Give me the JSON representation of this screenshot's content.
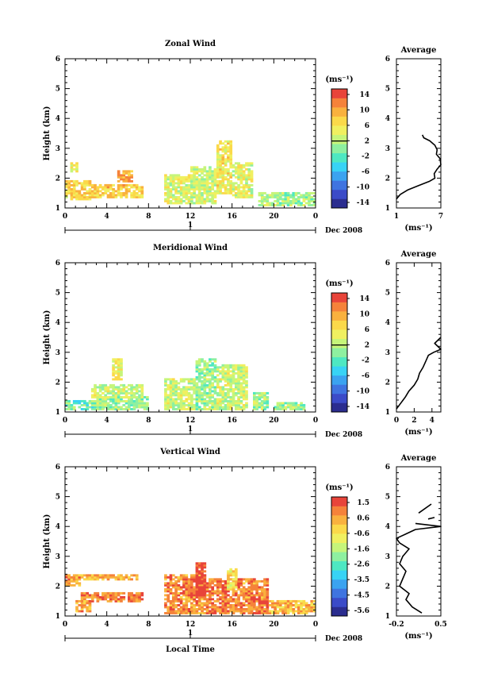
{
  "figure": {
    "colorbar_unit": "(ms⁻¹)",
    "colorbar_colors": [
      "#2b2d8f",
      "#3b4bc8",
      "#3f74e0",
      "#3ba3f0",
      "#38d3f5",
      "#4ee8c2",
      "#8ef0a0",
      "#c6f57a",
      "#f0f060",
      "#fbd94a",
      "#f9b13e",
      "#f5823a",
      "#e8443a"
    ]
  },
  "chart_data": [
    {
      "type": "heatmap",
      "title": "Zonal Wind",
      "ylabel": "Height (km)",
      "ylim": [
        1,
        6
      ],
      "yticks": [
        "1",
        "2",
        "3",
        "4",
        "5",
        "6"
      ],
      "xlim": [
        0,
        24
      ],
      "xticks": [
        "0",
        "4",
        "8",
        "12",
        "16",
        "20",
        "0"
      ],
      "date_axis_tick": "1",
      "date_axis_label": "Dec 2008",
      "xlabel": "",
      "colorbar_ticks": [
        "14",
        "10",
        "6",
        "2",
        "-2",
        "-6",
        "-10",
        "-14"
      ],
      "colorbar_range": [
        -16,
        16
      ],
      "colorbar_zero": 2,
      "approx_data_regions": [
        {
          "x": [
            0.2,
            2.5
          ],
          "y": [
            1.3,
            1.9
          ],
          "value": 7
        },
        {
          "x": [
            2.5,
            7.5
          ],
          "y": [
            1.4,
            1.8
          ],
          "value": 8
        },
        {
          "x": [
            5.0,
            6.5
          ],
          "y": [
            1.9,
            2.2
          ],
          "value": 10
        },
        {
          "x": [
            0.5,
            1.2
          ],
          "y": [
            2.2,
            2.5
          ],
          "value": 6
        },
        {
          "x": [
            9.5,
            12.0
          ],
          "y": [
            1.2,
            2.1
          ],
          "value": 4
        },
        {
          "x": [
            12.0,
            14.5
          ],
          "y": [
            1.2,
            2.4
          ],
          "value": 3
        },
        {
          "x": [
            14.5,
            16.0
          ],
          "y": [
            1.5,
            3.2
          ],
          "value": 6
        },
        {
          "x": [
            16.0,
            18.0
          ],
          "y": [
            1.4,
            2.5
          ],
          "value": 4
        },
        {
          "x": [
            18.5,
            21.0
          ],
          "y": [
            1.1,
            1.5
          ],
          "value": 2
        },
        {
          "x": [
            21.0,
            23.8
          ],
          "y": [
            1.1,
            1.5
          ],
          "value": 1
        }
      ],
      "average_profile": {
        "title": "Average",
        "xlabel": "(ms⁻¹)",
        "xlim": [
          1,
          7
        ],
        "xticks": [
          "1",
          "7"
        ],
        "ylim": [
          1,
          6
        ],
        "yticks": [
          "1",
          "2",
          "3",
          "4",
          "5",
          "6"
        ],
        "x": [
          1.0,
          1.5,
          2.5,
          4.0,
          5.5,
          6.2,
          6.1,
          6.5,
          7.0,
          6.9,
          6.4,
          6.5,
          6.2,
          5.5,
          4.7,
          4.5
        ],
        "y": [
          1.3,
          1.45,
          1.6,
          1.75,
          1.9,
          2.0,
          2.15,
          2.3,
          2.45,
          2.65,
          2.8,
          2.95,
          3.1,
          3.25,
          3.35,
          3.45
        ]
      }
    },
    {
      "type": "heatmap",
      "title": "Meridional Wind",
      "ylabel": "Height (km)",
      "ylim": [
        1,
        6
      ],
      "yticks": [
        "1",
        "2",
        "3",
        "4",
        "5",
        "6"
      ],
      "xlim": [
        0,
        24
      ],
      "xticks": [
        "0",
        "4",
        "8",
        "12",
        "16",
        "20",
        "0"
      ],
      "date_axis_tick": "1",
      "date_axis_label": "Dec 2008",
      "xlabel": "",
      "colorbar_ticks": [
        "14",
        "10",
        "6",
        "2",
        "-2",
        "-6",
        "-10",
        "-14"
      ],
      "colorbar_range": [
        -16,
        16
      ],
      "colorbar_zero": 2,
      "approx_data_regions": [
        {
          "x": [
            0.2,
            3.0
          ],
          "y": [
            1.1,
            1.4
          ],
          "value": -1
        },
        {
          "x": [
            3.0,
            8.0
          ],
          "y": [
            1.1,
            1.5
          ],
          "value": 1
        },
        {
          "x": [
            2.5,
            7.5
          ],
          "y": [
            1.5,
            1.9
          ],
          "value": 3
        },
        {
          "x": [
            4.5,
            5.5
          ],
          "y": [
            2.1,
            2.8
          ],
          "value": 5
        },
        {
          "x": [
            9.5,
            12.5
          ],
          "y": [
            1.1,
            2.1
          ],
          "value": 3
        },
        {
          "x": [
            12.5,
            14.5
          ],
          "y": [
            1.1,
            2.8
          ],
          "value": 1
        },
        {
          "x": [
            14.5,
            17.5
          ],
          "y": [
            1.1,
            2.6
          ],
          "value": 3
        },
        {
          "x": [
            18.0,
            19.5
          ],
          "y": [
            1.1,
            1.6
          ],
          "value": 1
        },
        {
          "x": [
            20.0,
            23.0
          ],
          "y": [
            1.1,
            1.3
          ],
          "value": 1
        }
      ],
      "average_profile": {
        "title": "Average",
        "xlabel": "(ms⁻¹)",
        "xlim": [
          0,
          5
        ],
        "xticks": [
          "0",
          "2",
          "4"
        ],
        "ylim": [
          1,
          6
        ],
        "yticks": [
          "1",
          "2",
          "3",
          "4",
          "5",
          "6"
        ],
        "x": [
          0.0,
          0.5,
          1.0,
          1.4,
          2.0,
          2.4,
          2.6,
          3.0,
          3.3,
          3.6,
          4.2,
          5.0,
          4.3,
          5.0
        ],
        "y": [
          1.1,
          1.3,
          1.5,
          1.7,
          1.9,
          2.1,
          2.3,
          2.5,
          2.7,
          2.9,
          3.0,
          3.1,
          3.3,
          3.5
        ]
      }
    },
    {
      "type": "heatmap",
      "title": "Vertical Wind",
      "ylabel": "Height (km)",
      "ylim": [
        1,
        6
      ],
      "yticks": [
        "1",
        "2",
        "3",
        "4",
        "5",
        "6"
      ],
      "xlim": [
        0,
        24
      ],
      "xticks": [
        "0",
        "4",
        "8",
        "12",
        "16",
        "20",
        "0"
      ],
      "date_axis_tick": "1",
      "date_axis_label": "Dec 2008",
      "xlabel": "Local Time",
      "colorbar_ticks": [
        "1.5",
        "0.6",
        "-0.6",
        "-1.6",
        "-2.6",
        "-3.5",
        "-4.5",
        "-5.6"
      ],
      "colorbar_range": [
        -6.1,
        2.0
      ],
      "approx_data_regions": [
        {
          "x": [
            0.2,
            1.5
          ],
          "y": [
            2.0,
            2.4
          ],
          "value": 0.7
        },
        {
          "x": [
            1.5,
            7.0
          ],
          "y": [
            2.2,
            2.4
          ],
          "value": 0.4
        },
        {
          "x": [
            1.5,
            7.5
          ],
          "y": [
            1.5,
            1.8
          ],
          "value": 1.0
        },
        {
          "x": [
            1.2,
            2.5
          ],
          "y": [
            1.2,
            1.5
          ],
          "value": 0.6
        },
        {
          "x": [
            9.5,
            13.5
          ],
          "y": [
            1.1,
            2.4
          ],
          "value": 0.9
        },
        {
          "x": [
            12.5,
            13.5
          ],
          "y": [
            1.6,
            2.8
          ],
          "value": 1.8
        },
        {
          "x": [
            13.5,
            19.5
          ],
          "y": [
            1.1,
            2.2
          ],
          "value": 1.0
        },
        {
          "x": [
            15.5,
            16.5
          ],
          "y": [
            1.9,
            2.6
          ],
          "value": -0.4
        },
        {
          "x": [
            19.5,
            23.8
          ],
          "y": [
            1.1,
            1.5
          ],
          "value": 0.3
        }
      ],
      "average_profile": {
        "title": "Average",
        "xlabel": "(ms⁻¹)",
        "xlim": [
          -0.2,
          0.5
        ],
        "xticks": [
          "-0.2",
          "0.5"
        ],
        "ylim": [
          1,
          6
        ],
        "yticks": [
          "1",
          "2",
          "3",
          "4",
          "5",
          "6"
        ],
        "x": [
          0.2,
          0.05,
          -0.05,
          0.0,
          -0.15,
          -0.1,
          -0.05,
          -0.15,
          -0.1,
          0.0,
          -0.15,
          -0.2,
          -0.05,
          0.1,
          0.5,
          0.1
        ],
        "y": [
          1.1,
          1.3,
          1.55,
          1.75,
          2.0,
          2.25,
          2.5,
          2.75,
          3.0,
          3.25,
          3.45,
          3.6,
          3.75,
          3.9,
          4.0,
          4.1
        ],
        "x2": [
          0.15,
          0.35
        ],
        "y2": [
          4.45,
          4.75
        ],
        "x3": [
          0.3,
          0.4
        ],
        "y3": [
          4.25,
          4.3
        ]
      }
    }
  ]
}
